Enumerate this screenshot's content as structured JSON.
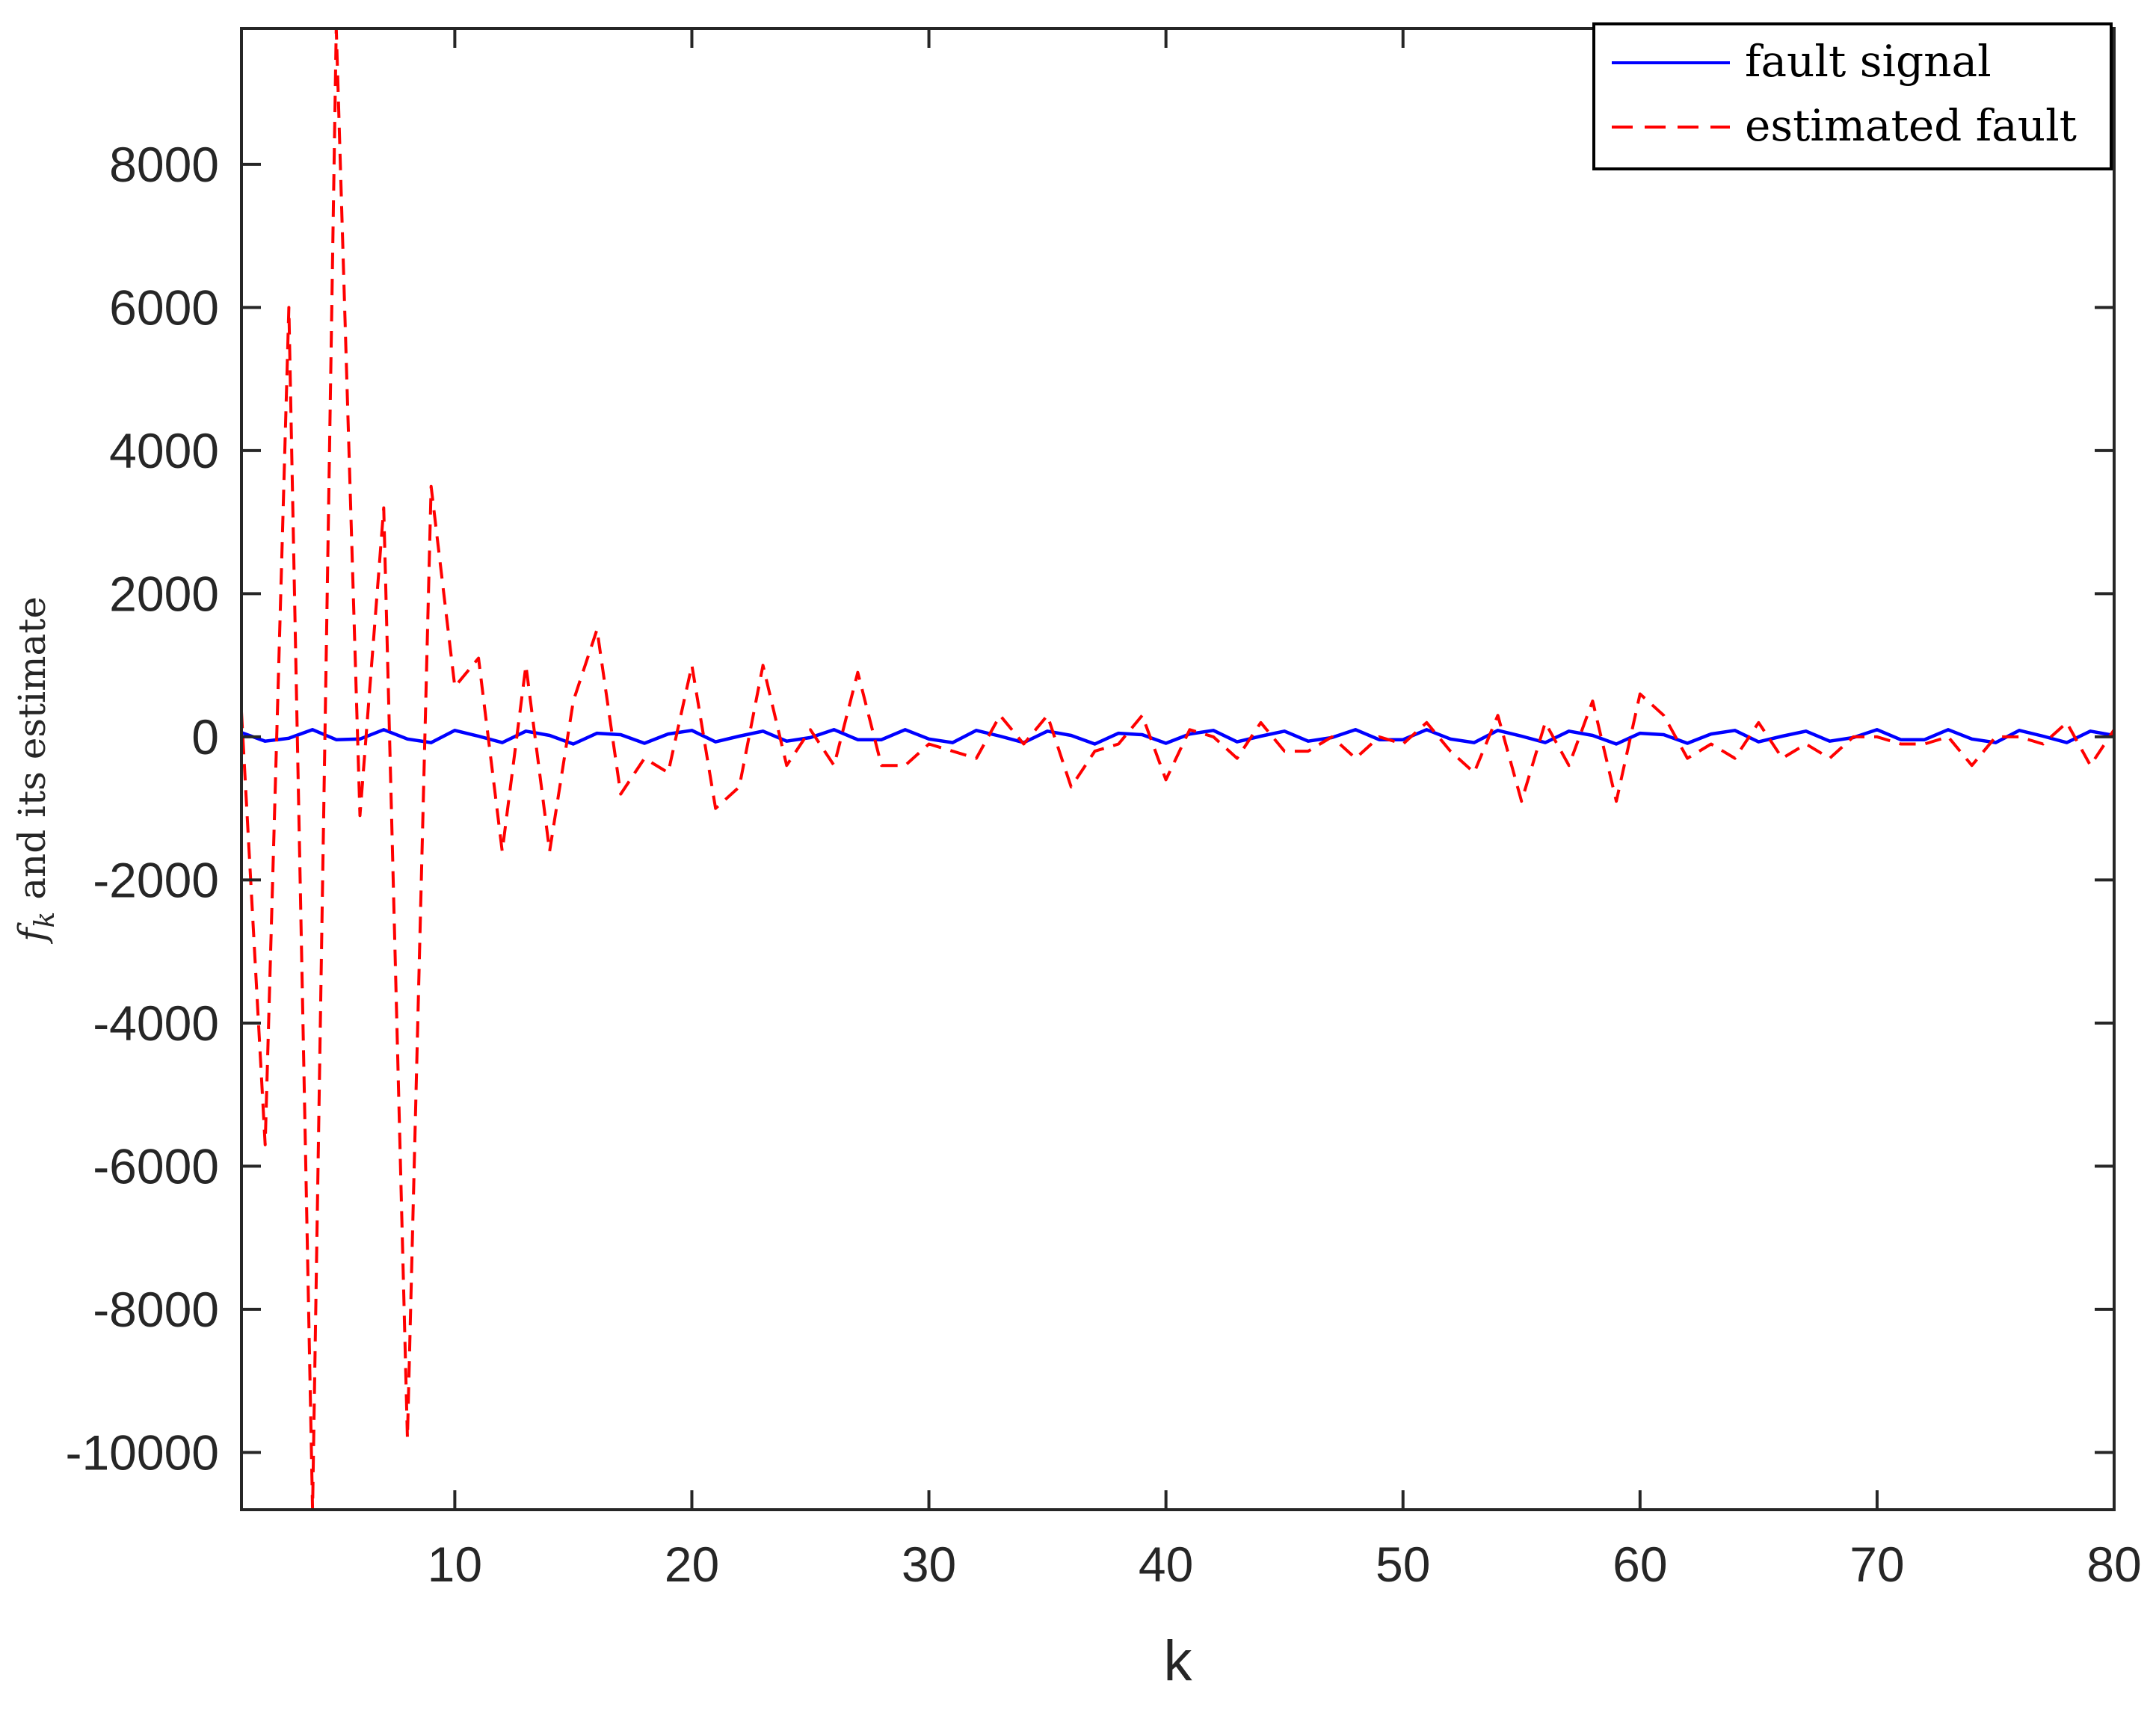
{
  "chart_data": {
    "type": "line",
    "title": "",
    "xlabel": "k",
    "ylabel": {
      "main": "f",
      "subscript": "k",
      "suffix": " and its estimate"
    },
    "xlim": [
      1,
      80
    ],
    "ylim": [
      -10800,
      9900
    ],
    "xticks": [
      10,
      20,
      30,
      40,
      50,
      60,
      70,
      80
    ],
    "yticks": [
      -10000,
      -8000,
      -6000,
      -4000,
      -2000,
      0,
      2000,
      4000,
      6000,
      8000
    ],
    "ytick_labels": [
      "-10000",
      "-8000",
      "-6000",
      "-4000",
      "-2000",
      "0",
      "2000",
      "4000",
      "6000",
      "8000"
    ],
    "xtick_labels": [
      "10",
      "20",
      "30",
      "40",
      "50",
      "60",
      "70",
      "80"
    ],
    "grid": false,
    "legend_position": "top-right",
    "series": [
      {
        "name": "fault signal",
        "color": "#0000ff",
        "style": "solid",
        "x": [
          1,
          2,
          3,
          4,
          5,
          6,
          7,
          8,
          9,
          10,
          11,
          12,
          13,
          14,
          15,
          16,
          17,
          18,
          19,
          20,
          21,
          22,
          23,
          24,
          25,
          26,
          27,
          28,
          29,
          30,
          31,
          32,
          33,
          34,
          35,
          36,
          37,
          38,
          39,
          40,
          41,
          42,
          43,
          44,
          45,
          46,
          47,
          48,
          49,
          50,
          51,
          52,
          53,
          54,
          55,
          56,
          57,
          58,
          59,
          60,
          61,
          62,
          63,
          64,
          65,
          66,
          67,
          68,
          69,
          70,
          71,
          72,
          73,
          74,
          75,
          76,
          77,
          78,
          79,
          80
        ],
        "y": [
          60,
          -60,
          -20,
          100,
          -40,
          -30,
          100,
          -30,
          -80,
          90,
          10,
          -80,
          80,
          20,
          -100,
          50,
          30,
          -90,
          40,
          90,
          -70,
          10,
          80,
          -60,
          -10,
          100,
          -40,
          -40,
          100,
          -30,
          -80,
          90,
          10,
          -80,
          80,
          20,
          -100,
          50,
          30,
          -90,
          40,
          90,
          -70,
          10,
          80,
          -60,
          -10,
          100,
          -40,
          -40,
          100,
          -30,
          -80,
          90,
          10,
          -80,
          80,
          20,
          -100,
          50,
          30,
          -90,
          40,
          90,
          -70,
          10,
          80,
          -60,
          -10,
          100,
          -40,
          -40,
          100,
          -30,
          -80,
          90,
          10,
          -80,
          80,
          20
        ]
      },
      {
        "name": "estimated fault",
        "color": "#ff0000",
        "style": "dashed",
        "x": [
          1,
          2,
          3,
          4,
          5,
          6,
          7,
          8,
          9,
          10,
          11,
          12,
          13,
          14,
          15,
          16,
          17,
          18,
          19,
          20,
          21,
          22,
          23,
          24,
          25,
          26,
          27,
          28,
          29,
          30,
          31,
          32,
          33,
          34,
          35,
          36,
          37,
          38,
          39,
          40,
          41,
          42,
          43,
          44,
          45,
          46,
          47,
          48,
          49,
          50,
          51,
          52,
          53,
          54,
          55,
          56,
          57,
          58,
          59,
          60,
          61,
          62,
          63,
          64,
          65,
          66,
          67,
          68,
          69,
          70,
          71,
          72,
          73,
          74,
          75,
          76,
          77,
          78,
          79,
          80
        ],
        "y": [
          350,
          -5700,
          6000,
          -10800,
          9900,
          -1100,
          3200,
          -9800,
          3500,
          700,
          1100,
          -1600,
          1000,
          -1600,
          500,
          1500,
          -800,
          -300,
          -500,
          1000,
          -1000,
          -700,
          1000,
          -400,
          100,
          -400,
          900,
          -400,
          -400,
          -100,
          -200,
          -300,
          300,
          -100,
          300,
          -700,
          -200,
          -100,
          300,
          -600,
          100,
          0,
          -300,
          200,
          -200,
          -200,
          0,
          -300,
          0,
          -100,
          200,
          -200,
          -500,
          300,
          -900,
          200,
          -400,
          500,
          -900,
          600,
          300,
          -300,
          -100,
          -300,
          200,
          -300,
          -100,
          -300,
          0,
          0,
          -100,
          -100,
          0,
          -400,
          0,
          0,
          -100,
          200,
          -400,
          100
        ]
      }
    ]
  }
}
